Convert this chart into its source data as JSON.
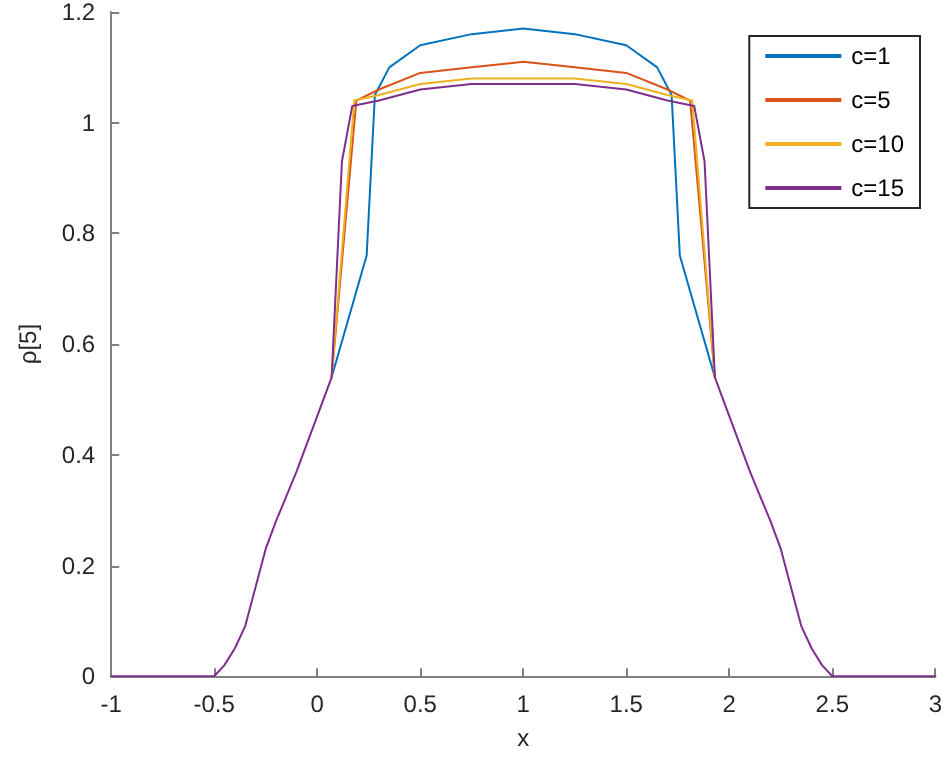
{
  "chart_data": {
    "type": "line",
    "xlabel": "x",
    "ylabel": "ρ[5]",
    "xlim": [
      -1,
      3
    ],
    "ylim": [
      0,
      1.2
    ],
    "xticks": [
      -1,
      -0.5,
      0,
      0.5,
      1,
      1.5,
      2,
      2.5,
      3
    ],
    "yticks": [
      0,
      0.2,
      0.4,
      0.6,
      0.8,
      1,
      1.2
    ],
    "grid": false,
    "legend": "top right",
    "marker": "none",
    "line_style": "solid",
    "series": [
      {
        "name": "c=1",
        "color": "#0072bd",
        "x": [
          0.07,
          0.24,
          0.28,
          0.35,
          0.5,
          0.75,
          1,
          1.25,
          1.5,
          1.65,
          1.72,
          1.76,
          1.93
        ],
        "values": [
          0.54,
          0.76,
          1.05,
          1.1,
          1.14,
          1.16,
          1.17,
          1.16,
          1.14,
          1.1,
          1.05,
          0.76,
          0.54
        ]
      },
      {
        "name": "c=5",
        "color": "#d95319",
        "x": [
          0.07,
          0.19,
          0.3,
          0.5,
          0.75,
          1,
          1.25,
          1.5,
          1.7,
          1.81,
          1.93
        ],
        "values": [
          0.54,
          1.04,
          1.06,
          1.09,
          1.1,
          1.11,
          1.1,
          1.09,
          1.06,
          1.04,
          0.54
        ]
      },
      {
        "name": "c=10",
        "color": "#edb120",
        "x": [
          0.07,
          0.18,
          0.3,
          0.5,
          0.75,
          1,
          1.25,
          1.5,
          1.7,
          1.82,
          1.93
        ],
        "values": [
          0.54,
          1.04,
          1.05,
          1.07,
          1.08,
          1.08,
          1.08,
          1.07,
          1.05,
          1.04,
          0.54
        ]
      },
      {
        "name": "c=15",
        "color": "#7e2f8e",
        "x": [
          -1,
          -0.5,
          -0.45,
          -0.4,
          -0.35,
          -0.3,
          -0.25,
          -0.2,
          -0.1,
          0,
          0.07,
          0.12,
          0.17,
          0.3,
          0.5,
          0.75,
          1,
          1.25,
          1.5,
          1.7,
          1.83,
          1.88,
          1.93,
          2,
          2.1,
          2.2,
          2.25,
          2.3,
          2.35,
          2.4,
          2.45,
          2.5,
          3
        ],
        "values": [
          0,
          0,
          0.02,
          0.05,
          0.09,
          0.16,
          0.23,
          0.28,
          0.37,
          0.47,
          0.54,
          0.93,
          1.03,
          1.04,
          1.06,
          1.07,
          1.07,
          1.07,
          1.06,
          1.04,
          1.03,
          0.93,
          0.54,
          0.47,
          0.37,
          0.28,
          0.23,
          0.16,
          0.09,
          0.05,
          0.02,
          0,
          0
        ]
      }
    ]
  }
}
